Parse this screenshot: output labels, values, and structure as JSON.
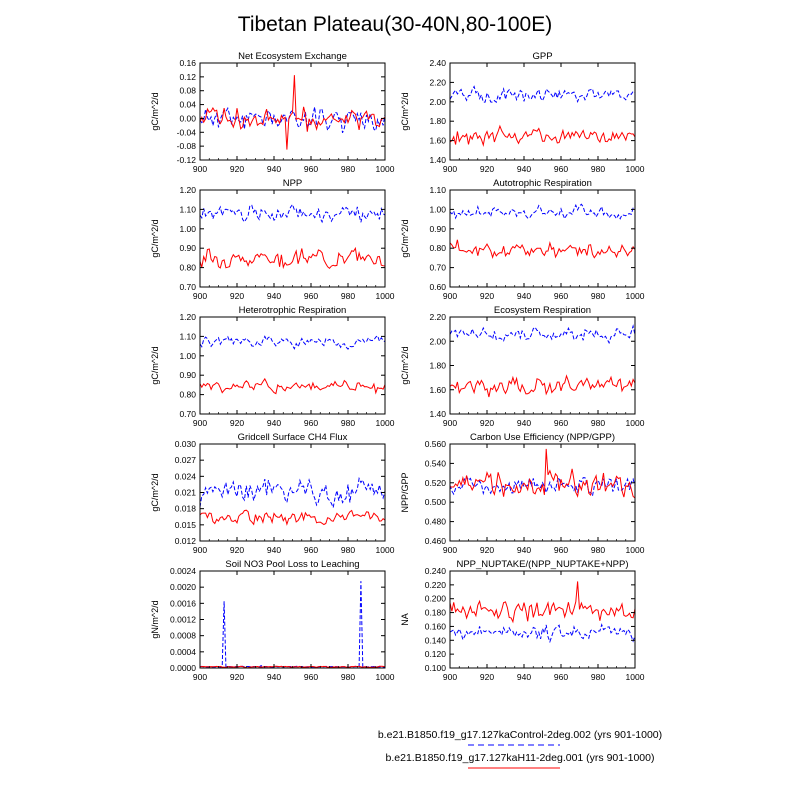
{
  "title": "Tibetan Plateau(30-40N,80-100E)",
  "legend": {
    "entries": [
      {
        "label": "b.e21.B1850.f19_g17.127kaControl-2deg.002 (yrs 901-1000)",
        "color": "#0000ff",
        "dash": "dashed"
      },
      {
        "label": "b.e21.B1850.f19_g17.127kaH11-2deg.001 (yrs 901-1000)",
        "color": "#ff0000",
        "dash": "solid"
      }
    ]
  },
  "chart_data": [
    {
      "type": "line",
      "title": "Net Ecosystem Exchange",
      "ylabel": "gC/m^2/d",
      "xlim": [
        900,
        1000
      ],
      "ylim": [
        -0.12,
        0.16
      ],
      "xticks": [
        "900",
        "920",
        "940",
        "960",
        "980",
        "1000"
      ],
      "yticks": [
        "-0.12",
        "-0.08",
        "-0.04",
        "0.00",
        "0.04",
        "0.08",
        "0.12",
        "0.16"
      ],
      "series": [
        {
          "color": "#0000ff",
          "style": "dashed",
          "mean": 0.0,
          "amp": 0.03,
          "seed": 11,
          "spikes": []
        },
        {
          "color": "#ff0000",
          "style": "solid",
          "mean": 0.0,
          "amp": 0.03,
          "seed": 12,
          "spikes": [
            [
              951,
              0.125
            ],
            [
              947,
              -0.09
            ]
          ]
        }
      ]
    },
    {
      "type": "line",
      "title": "GPP",
      "ylabel": "gC/m^2/d",
      "xlim": [
        900,
        1000
      ],
      "ylim": [
        1.4,
        2.4
      ],
      "xticks": [
        "900",
        "920",
        "940",
        "960",
        "980",
        "1000"
      ],
      "yticks": [
        "1.40",
        "1.60",
        "1.80",
        "2.00",
        "2.20",
        "2.40"
      ],
      "series": [
        {
          "color": "#0000ff",
          "style": "dashed",
          "mean": 2.07,
          "amp": 0.06,
          "seed": 21,
          "spikes": []
        },
        {
          "color": "#ff0000",
          "style": "solid",
          "mean": 1.65,
          "amp": 0.07,
          "seed": 22,
          "spikes": []
        }
      ]
    },
    {
      "type": "line",
      "title": "NPP",
      "ylabel": "gC/m^2/d",
      "xlim": [
        900,
        1000
      ],
      "ylim": [
        0.7,
        1.2
      ],
      "xticks": [
        "900",
        "920",
        "940",
        "960",
        "980",
        "1000"
      ],
      "yticks": [
        "0.70",
        "0.80",
        "0.90",
        "1.00",
        "1.10",
        "1.20"
      ],
      "series": [
        {
          "color": "#0000ff",
          "style": "dashed",
          "mean": 1.08,
          "amp": 0.035,
          "seed": 31,
          "spikes": []
        },
        {
          "color": "#ff0000",
          "style": "solid",
          "mean": 0.85,
          "amp": 0.04,
          "seed": 32,
          "spikes": []
        }
      ]
    },
    {
      "type": "line",
      "title": "Autotrophic Respiration",
      "ylabel": "gC/m^2/d",
      "xlim": [
        900,
        1000
      ],
      "ylim": [
        0.6,
        1.1
      ],
      "xticks": [
        "900",
        "920",
        "940",
        "960",
        "980",
        "1000"
      ],
      "yticks": [
        "0.60",
        "0.70",
        "0.80",
        "0.90",
        "1.00",
        "1.10"
      ],
      "series": [
        {
          "color": "#0000ff",
          "style": "dashed",
          "mean": 0.98,
          "amp": 0.03,
          "seed": 41,
          "spikes": []
        },
        {
          "color": "#ff0000",
          "style": "solid",
          "mean": 0.79,
          "amp": 0.035,
          "seed": 42,
          "spikes": []
        }
      ]
    },
    {
      "type": "line",
      "title": "Heterotrophic Respiration",
      "ylabel": "gC/m^2/d",
      "xlim": [
        900,
        1000
      ],
      "ylim": [
        0.7,
        1.2
      ],
      "xticks": [
        "900",
        "920",
        "940",
        "960",
        "980",
        "1000"
      ],
      "yticks": [
        "0.70",
        "0.80",
        "0.90",
        "1.00",
        "1.10",
        "1.20"
      ],
      "series": [
        {
          "color": "#0000ff",
          "style": "dashed",
          "mean": 1.07,
          "amp": 0.025,
          "seed": 51,
          "spikes": []
        },
        {
          "color": "#ff0000",
          "style": "solid",
          "mean": 0.84,
          "amp": 0.03,
          "seed": 52,
          "spikes": []
        }
      ]
    },
    {
      "type": "line",
      "title": "Ecosystem Respiration",
      "ylabel": "gC/m^2/d",
      "xlim": [
        900,
        1000
      ],
      "ylim": [
        1.4,
        2.2
      ],
      "xticks": [
        "900",
        "920",
        "940",
        "960",
        "980",
        "1000"
      ],
      "yticks": [
        "1.40",
        "1.60",
        "1.80",
        "2.00",
        "2.20"
      ],
      "series": [
        {
          "color": "#0000ff",
          "style": "dashed",
          "mean": 2.05,
          "amp": 0.05,
          "seed": 61,
          "spikes": []
        },
        {
          "color": "#ff0000",
          "style": "solid",
          "mean": 1.63,
          "amp": 0.06,
          "seed": 62,
          "spikes": []
        }
      ]
    },
    {
      "type": "line",
      "title": "Gridcell Surface CH4 Flux",
      "ylabel": "gC/m^2/d",
      "xlim": [
        900,
        1000
      ],
      "ylim": [
        0.012,
        0.03
      ],
      "xticks": [
        "900",
        "920",
        "940",
        "960",
        "980",
        "1000"
      ],
      "yticks": [
        "0.012",
        "0.015",
        "0.018",
        "0.021",
        "0.024",
        "0.027",
        "0.030"
      ],
      "series": [
        {
          "color": "#0000ff",
          "style": "dashed",
          "mean": 0.0215,
          "amp": 0.0022,
          "seed": 71,
          "spikes": []
        },
        {
          "color": "#ff0000",
          "style": "solid",
          "mean": 0.0163,
          "amp": 0.0012,
          "seed": 72,
          "spikes": []
        }
      ]
    },
    {
      "type": "line",
      "title": "Carbon Use Efficiency (NPP/GPP)",
      "ylabel": "NPP/GPP",
      "xlim": [
        900,
        1000
      ],
      "ylim": [
        0.46,
        0.56
      ],
      "xticks": [
        "900",
        "920",
        "940",
        "960",
        "980",
        "1000"
      ],
      "yticks": [
        "0.460",
        "0.480",
        "0.500",
        "0.520",
        "0.540",
        "0.560"
      ],
      "series": [
        {
          "color": "#0000ff",
          "style": "dashed",
          "mean": 0.517,
          "amp": 0.009,
          "seed": 81,
          "spikes": []
        },
        {
          "color": "#ff0000",
          "style": "solid",
          "mean": 0.517,
          "amp": 0.012,
          "seed": 82,
          "spikes": [
            [
              952,
              0.555
            ]
          ]
        }
      ]
    },
    {
      "type": "line",
      "title": "Soil NO3 Pool Loss to Leaching",
      "ylabel": "gN/m^2/d",
      "xlim": [
        900,
        1000
      ],
      "ylim": [
        0,
        0.0024
      ],
      "xticks": [
        "900",
        "920",
        "940",
        "960",
        "980",
        "1000"
      ],
      "yticks": [
        "0.0000",
        "0.0004",
        "0.0008",
        "0.0012",
        "0.0016",
        "0.0020",
        "0.0024"
      ],
      "series": [
        {
          "color": "#0000ff",
          "style": "dashed",
          "mean": 3e-05,
          "amp": 1e-05,
          "seed": 91,
          "spikes": [
            [
              913,
              0.00165
            ],
            [
              987,
              0.00215
            ],
            [
              933,
              6e-05
            ]
          ]
        },
        {
          "color": "#ff0000",
          "style": "solid",
          "mean": 3e-05,
          "amp": 1.2e-05,
          "seed": 92,
          "spikes": []
        }
      ]
    },
    {
      "type": "line",
      "title": "NPP_NUPTAKE/(NPP_NUPTAKE+NPP)",
      "ylabel": "NA",
      "xlim": [
        900,
        1000
      ],
      "ylim": [
        0.1,
        0.24
      ],
      "xticks": [
        "900",
        "920",
        "940",
        "960",
        "980",
        "1000"
      ],
      "yticks": [
        "0.100",
        "0.120",
        "0.140",
        "0.160",
        "0.180",
        "0.200",
        "0.220",
        "0.240"
      ],
      "series": [
        {
          "color": "#0000ff",
          "style": "dashed",
          "mean": 0.152,
          "amp": 0.01,
          "seed": 101,
          "spikes": []
        },
        {
          "color": "#ff0000",
          "style": "solid",
          "mean": 0.182,
          "amp": 0.014,
          "seed": 102,
          "spikes": [
            [
              969,
              0.225
            ]
          ]
        }
      ]
    }
  ]
}
